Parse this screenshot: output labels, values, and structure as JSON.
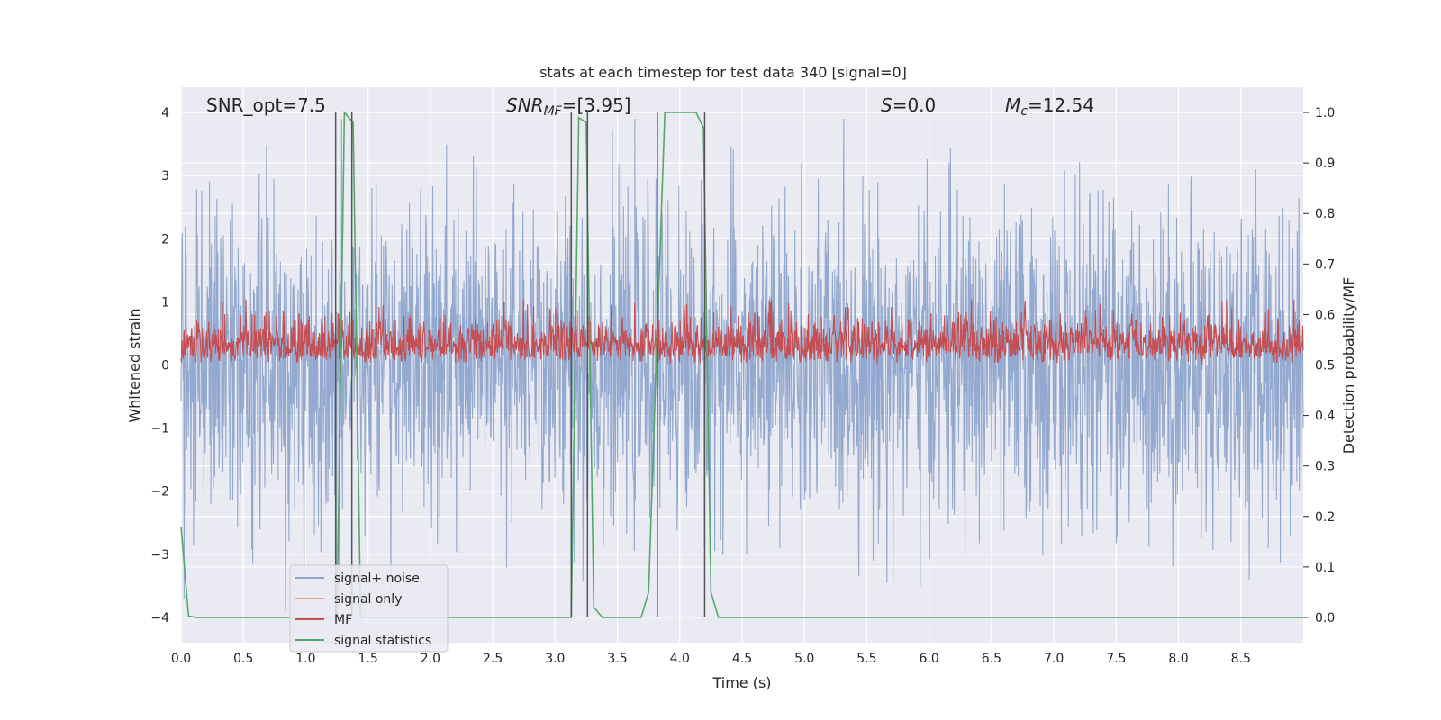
{
  "chart_data": {
    "type": "line",
    "title": "stats at each timestep for test data 340 [signal=0]",
    "xlabel": "Time (s)",
    "ylabel_left": "Whitened strain",
    "ylabel_right": "Detection probability/MF",
    "xlim": [
      0,
      9.0
    ],
    "ylim_left": [
      -4.4,
      4.4
    ],
    "ylim_right": [
      -0.05,
      1.05
    ],
    "xticks": [
      0.0,
      0.5,
      1.0,
      1.5,
      2.0,
      2.5,
      3.0,
      3.5,
      4.0,
      4.5,
      5.0,
      5.5,
      6.0,
      6.5,
      7.0,
      7.5,
      8.0,
      8.5
    ],
    "xtick_labels": [
      "0.0",
      "0.5",
      "1.0",
      "1.5",
      "2.0",
      "2.5",
      "3.0",
      "3.5",
      "4.0",
      "4.5",
      "5.0",
      "5.5",
      "6.0",
      "6.5",
      "7.0",
      "7.5",
      "8.0",
      "8.5"
    ],
    "yticks_left": [
      -4,
      -3,
      -2,
      -1,
      0,
      1,
      2,
      3,
      4
    ],
    "ytick_labels_left": [
      "−4",
      "−3",
      "−2",
      "−1",
      "0",
      "1",
      "2",
      "3",
      "4"
    ],
    "yticks_right": [
      0.0,
      0.1,
      0.2,
      0.3,
      0.4,
      0.5,
      0.6,
      0.7,
      0.8,
      0.9,
      1.0
    ],
    "ytick_labels_right": [
      "0.0",
      "0.1",
      "0.2",
      "0.3",
      "0.4",
      "0.5",
      "0.6",
      "0.7",
      "0.8",
      "0.9",
      "1.0"
    ],
    "grid": true,
    "legend_placement": "lower-left",
    "annotations": {
      "snr_opt": "SNR_opt=7.5",
      "snr_mf_label": "SNR",
      "snr_mf_sub": "MF",
      "snr_mf_value": "=[3.95]",
      "s_label": "S",
      "s_value": "=0.0",
      "mc_label": "M",
      "mc_sub": "c",
      "mc_value": "=12.54"
    },
    "series": [
      {
        "name": "signal+ noise",
        "color": "#8fa5cc",
        "axis": "left",
        "description_range": [
          -3.9,
          3.9
        ]
      },
      {
        "name": "signal only",
        "color": "#e8a58b",
        "axis": "left",
        "values": []
      },
      {
        "name": "MF",
        "color": "#c44e52",
        "axis": "right",
        "description_range": [
          0.5,
          0.63
        ]
      },
      {
        "name": "signal statistics",
        "color": "#55a868",
        "axis": "right",
        "x": [
          0.0,
          0.06,
          0.12,
          1.25,
          1.31,
          1.38,
          1.44,
          3.13,
          3.19,
          3.25,
          3.31,
          3.38,
          3.69,
          3.75,
          3.81,
          3.88,
          4.13,
          4.19,
          4.25,
          4.31,
          9.0
        ],
        "y": [
          0.18,
          0.003,
          0.0,
          0.0,
          1.0,
          0.98,
          0.0,
          0.0,
          0.99,
          0.98,
          0.02,
          0.0,
          0.0,
          0.05,
          0.5,
          1.0,
          1.0,
          0.97,
          0.05,
          0.0,
          0.0
        ]
      }
    ],
    "vlines": [
      1.24,
      1.37,
      3.13,
      3.26,
      3.82,
      4.2
    ],
    "vline_color": "#555555"
  }
}
